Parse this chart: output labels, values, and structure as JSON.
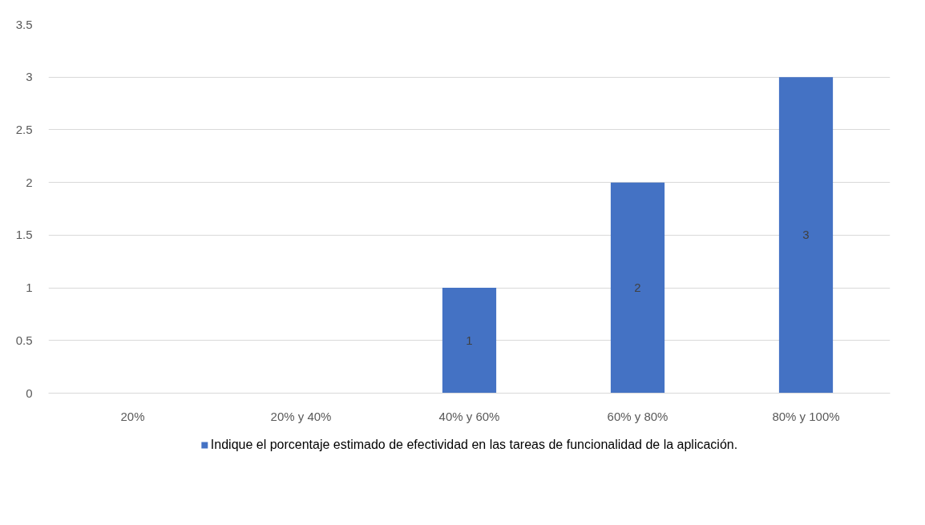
{
  "chart_data": {
    "type": "bar",
    "categories": [
      "20%",
      "20% y 40%",
      "40% y 60%",
      "60% y 80%",
      "80% y 100%"
    ],
    "series": [
      {
        "name": "Indique el porcentaje estimado de efectividad en las tareas de funcionalidad de la aplicación.",
        "color": "#4472c4",
        "values": [
          0,
          0,
          1,
          2,
          3
        ],
        "value_labels": [
          null,
          null,
          "1",
          "2",
          "3"
        ]
      }
    ],
    "ylim": [
      0,
      3.5
    ],
    "yticks": [
      0,
      {
        "value": 0.5,
        "label": "0.5"
      },
      1,
      {
        "value": 1.5,
        "label": "1.5"
      },
      2,
      {
        "value": 2.5,
        "label": "2.5"
      },
      3,
      {
        "value": 3.5,
        "label": "3.5"
      }
    ],
    "grid": "y",
    "legend": "bottom"
  }
}
